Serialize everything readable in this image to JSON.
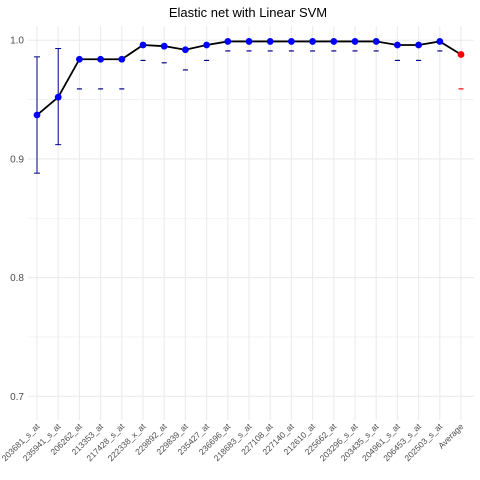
{
  "chart_data": {
    "type": "line",
    "title": "Elastic net  with Linear SVM",
    "xlabel": "",
    "ylabel": "",
    "ylim": [
      0.68,
      1.012
    ],
    "yticks": [
      0.7,
      0.8,
      0.9,
      1.0
    ],
    "ytick_labels": [
      "0.7",
      "0.8",
      "0.9",
      "1.0"
    ],
    "grid": true,
    "categories": [
      "203681_s_at",
      "235941_s_at",
      "206262_at",
      "213353_at",
      "217428_s_at",
      "222338_x_at",
      "229892_at",
      "229839_at",
      "235427_at",
      "236696_at",
      "218683_s_at",
      "227108_at",
      "227140_at",
      "212610_at",
      "225662_at",
      "203296_s_at",
      "203435_s_at",
      "204961_s_at",
      "206453_s_at",
      "202503_s_at",
      "Average"
    ],
    "series": [
      {
        "values": [
          0.937,
          0.952,
          0.984,
          0.984,
          0.984,
          0.996,
          0.995,
          0.992,
          0.996,
          0.999,
          0.999,
          0.999,
          0.999,
          0.999,
          0.999,
          0.999,
          0.999,
          0.996,
          0.996,
          0.999,
          0.988
        ],
        "error_low": [
          0.888,
          0.912,
          null,
          null,
          null,
          null,
          null,
          null,
          null,
          null,
          null,
          null,
          null,
          null,
          null,
          null,
          null,
          null,
          null,
          null,
          null
        ],
        "error_high": [
          0.986,
          0.993,
          null,
          null,
          null,
          null,
          null,
          null,
          null,
          null,
          null,
          null,
          null,
          null,
          null,
          null,
          null,
          null,
          null,
          null,
          null
        ],
        "lower_marks": [
          null,
          null,
          0.959,
          0.959,
          0.959,
          0.983,
          0.981,
          0.975,
          0.983,
          0.991,
          0.991,
          0.991,
          0.991,
          0.991,
          0.991,
          0.991,
          0.991,
          0.983,
          0.983,
          0.991,
          0.959
        ]
      }
    ],
    "colors": {
      "line": "#000000",
      "point": "#0000ff",
      "average_point": "#ff0000",
      "error": "#00008b",
      "lower_mark": "#00008b",
      "average_lower_mark": "#ff0000",
      "grid": "#ebebeb",
      "text": "#4d4d4d"
    }
  }
}
